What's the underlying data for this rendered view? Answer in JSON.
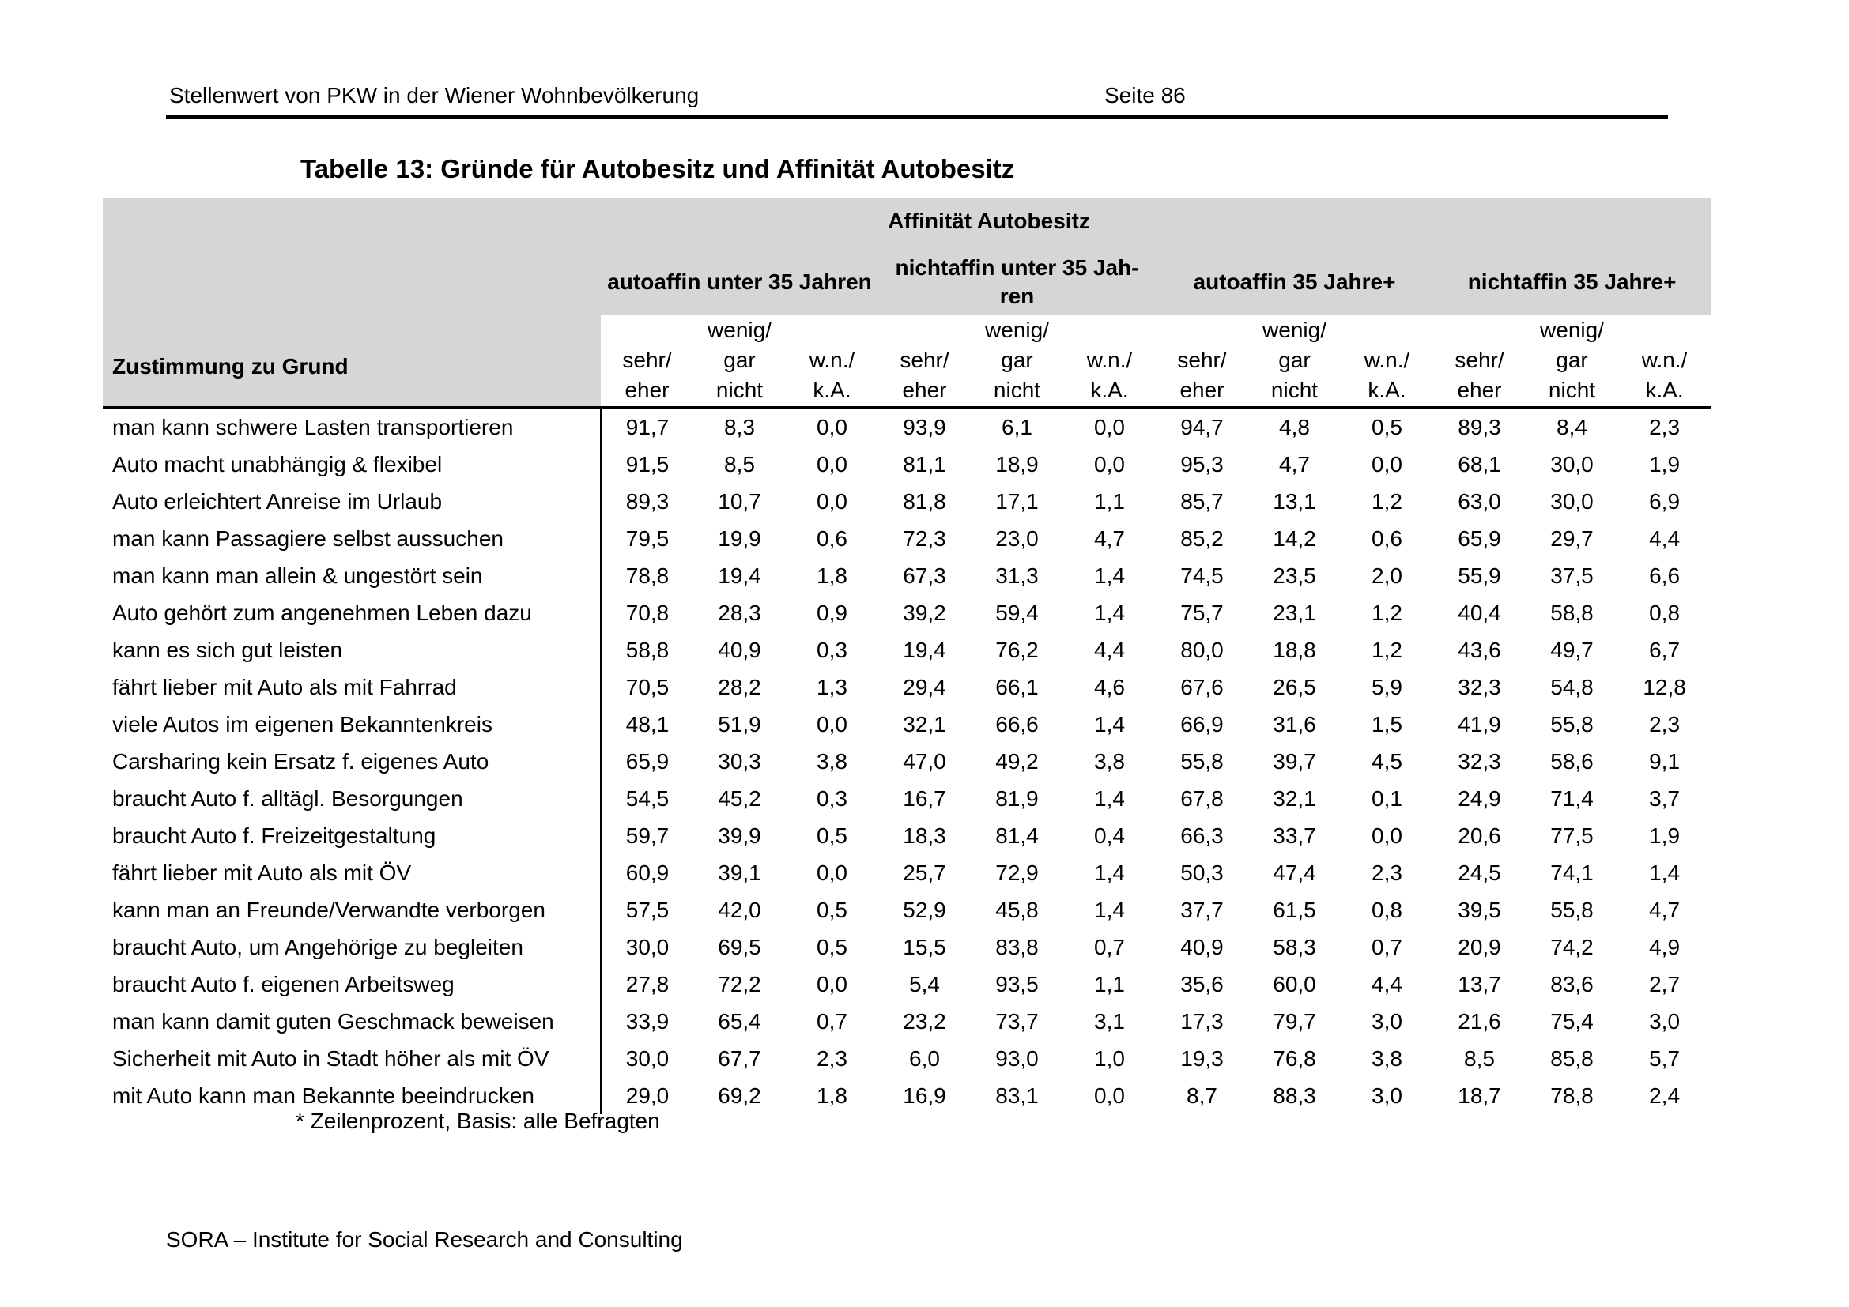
{
  "page_header": {
    "title": "Stellenwert von PKW in der Wiener Wohnbevölkerung",
    "page_label": "Seite 86"
  },
  "table_title": "Tabelle 13: Gründe für Autobesitz und Affinität Autobesitz",
  "table": {
    "span_header": "Affinität Autobesitz",
    "row_header": "Zustimmung zu Grund",
    "group_headers": [
      "autoaffin unter 35 Jahren",
      "nichtaffin unter 35 Jah-\nren",
      "autoaffin 35 Jahre+",
      "nichtaffin 35 Jahre+"
    ],
    "sub_headers": [
      [
        " ",
        "sehr/",
        "eher"
      ],
      [
        "wenig/",
        "gar",
        "nicht"
      ],
      [
        " ",
        "w.n./",
        "k.A."
      ]
    ],
    "rows": [
      {
        "label": "man kann schwere Lasten transportieren",
        "values": [
          "91,7",
          "8,3",
          "0,0",
          "93,9",
          "6,1",
          "0,0",
          "94,7",
          "4,8",
          "0,5",
          "89,3",
          "8,4",
          "2,3"
        ]
      },
      {
        "label": "Auto macht unabhängig & flexibel",
        "values": [
          "91,5",
          "8,5",
          "0,0",
          "81,1",
          "18,9",
          "0,0",
          "95,3",
          "4,7",
          "0,0",
          "68,1",
          "30,0",
          "1,9"
        ]
      },
      {
        "label": "Auto erleichtert Anreise im Urlaub",
        "values": [
          "89,3",
          "10,7",
          "0,0",
          "81,8",
          "17,1",
          "1,1",
          "85,7",
          "13,1",
          "1,2",
          "63,0",
          "30,0",
          "6,9"
        ]
      },
      {
        "label": "man kann Passagiere selbst aussuchen",
        "values": [
          "79,5",
          "19,9",
          "0,6",
          "72,3",
          "23,0",
          "4,7",
          "85,2",
          "14,2",
          "0,6",
          "65,9",
          "29,7",
          "4,4"
        ]
      },
      {
        "label": "man kann man allein & ungestört sein",
        "values": [
          "78,8",
          "19,4",
          "1,8",
          "67,3",
          "31,3",
          "1,4",
          "74,5",
          "23,5",
          "2,0",
          "55,9",
          "37,5",
          "6,6"
        ]
      },
      {
        "label": "Auto gehört zum angenehmen Leben dazu",
        "values": [
          "70,8",
          "28,3",
          "0,9",
          "39,2",
          "59,4",
          "1,4",
          "75,7",
          "23,1",
          "1,2",
          "40,4",
          "58,8",
          "0,8"
        ]
      },
      {
        "label": "kann es sich gut leisten",
        "values": [
          "58,8",
          "40,9",
          "0,3",
          "19,4",
          "76,2",
          "4,4",
          "80,0",
          "18,8",
          "1,2",
          "43,6",
          "49,7",
          "6,7"
        ]
      },
      {
        "label": "fährt lieber mit Auto als mit Fahrrad",
        "values": [
          "70,5",
          "28,2",
          "1,3",
          "29,4",
          "66,1",
          "4,6",
          "67,6",
          "26,5",
          "5,9",
          "32,3",
          "54,8",
          "12,8"
        ]
      },
      {
        "label": "viele Autos im eigenen Bekanntenkreis",
        "values": [
          "48,1",
          "51,9",
          "0,0",
          "32,1",
          "66,6",
          "1,4",
          "66,9",
          "31,6",
          "1,5",
          "41,9",
          "55,8",
          "2,3"
        ]
      },
      {
        "label": "Carsharing kein Ersatz f. eigenes Auto",
        "values": [
          "65,9",
          "30,3",
          "3,8",
          "47,0",
          "49,2",
          "3,8",
          "55,8",
          "39,7",
          "4,5",
          "32,3",
          "58,6",
          "9,1"
        ]
      },
      {
        "label": "braucht Auto f. alltägl. Besorgungen",
        "values": [
          "54,5",
          "45,2",
          "0,3",
          "16,7",
          "81,9",
          "1,4",
          "67,8",
          "32,1",
          "0,1",
          "24,9",
          "71,4",
          "3,7"
        ]
      },
      {
        "label": "braucht Auto f. Freizeitgestaltung",
        "values": [
          "59,7",
          "39,9",
          "0,5",
          "18,3",
          "81,4",
          "0,4",
          "66,3",
          "33,7",
          "0,0",
          "20,6",
          "77,5",
          "1,9"
        ]
      },
      {
        "label": "fährt lieber mit Auto als mit ÖV",
        "values": [
          "60,9",
          "39,1",
          "0,0",
          "25,7",
          "72,9",
          "1,4",
          "50,3",
          "47,4",
          "2,3",
          "24,5",
          "74,1",
          "1,4"
        ]
      },
      {
        "label": "kann man an Freunde/Verwandte verborgen",
        "values": [
          "57,5",
          "42,0",
          "0,5",
          "52,9",
          "45,8",
          "1,4",
          "37,7",
          "61,5",
          "0,8",
          "39,5",
          "55,8",
          "4,7"
        ]
      },
      {
        "label": "braucht Auto, um Angehörige zu begleiten",
        "values": [
          "30,0",
          "69,5",
          "0,5",
          "15,5",
          "83,8",
          "0,7",
          "40,9",
          "58,3",
          "0,7",
          "20,9",
          "74,2",
          "4,9"
        ]
      },
      {
        "label": "braucht Auto f. eigenen Arbeitsweg",
        "values": [
          "27,8",
          "72,2",
          "0,0",
          "5,4",
          "93,5",
          "1,1",
          "35,6",
          "60,0",
          "4,4",
          "13,7",
          "83,6",
          "2,7"
        ]
      },
      {
        "label": "man kann damit guten Geschmack beweisen",
        "values": [
          "33,9",
          "65,4",
          "0,7",
          "23,2",
          "73,7",
          "3,1",
          "17,3",
          "79,7",
          "3,0",
          "21,6",
          "75,4",
          "3,0"
        ]
      },
      {
        "label": "Sicherheit mit Auto in Stadt höher als mit ÖV",
        "values": [
          "30,0",
          "67,7",
          "2,3",
          "6,0",
          "93,0",
          "1,0",
          "19,3",
          "76,8",
          "3,8",
          "8,5",
          "85,8",
          "5,7"
        ]
      },
      {
        "label": "mit Auto kann man Bekannte beeindrucken",
        "values": [
          "29,0",
          "69,2",
          "1,8",
          "16,9",
          "83,1",
          "0,0",
          "8,7",
          "88,3",
          "3,0",
          "18,7",
          "78,8",
          "2,4"
        ]
      }
    ]
  },
  "footnote": "* Zeilenprozent, Basis: alle Befragten",
  "page_footer": "SORA – Institute for Social Research and Consulting",
  "colors": {
    "header_shade": "#d6d6d6",
    "text": "#000000",
    "rule": "#000000"
  }
}
